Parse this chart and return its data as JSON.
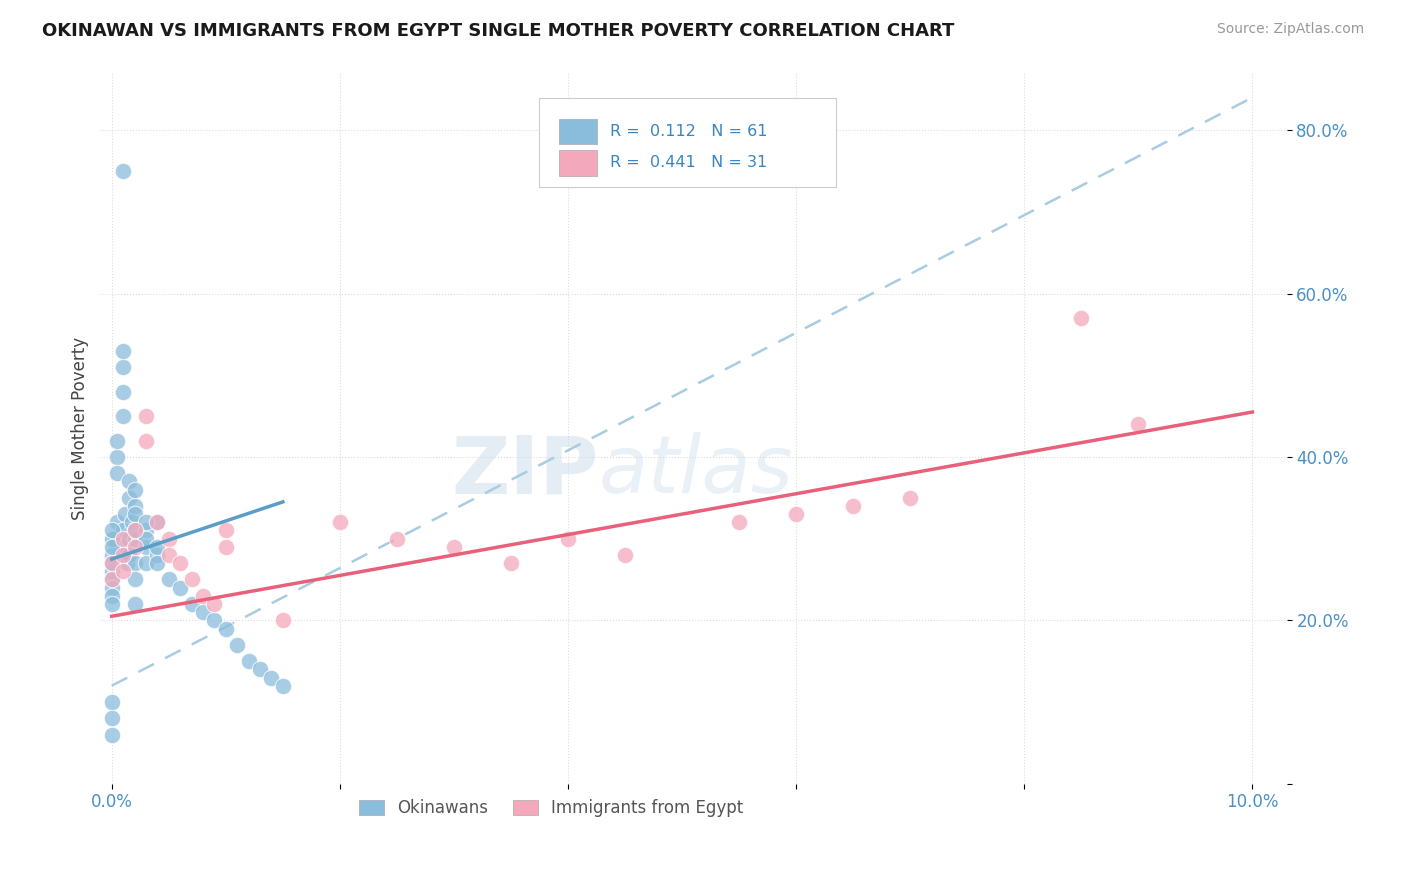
{
  "title": "OKINAWAN VS IMMIGRANTS FROM EGYPT SINGLE MOTHER POVERTY CORRELATION CHART",
  "source": "Source: ZipAtlas.com",
  "ylabel": "Single Mother Poverty",
  "xlim": [
    -0.001,
    0.103
  ],
  "ylim": [
    0.0,
    0.87
  ],
  "ytick_vals": [
    0.0,
    0.2,
    0.4,
    0.6,
    0.8
  ],
  "ytick_labels": [
    "",
    "20.0%",
    "40.0%",
    "60.0%",
    "80.0%"
  ],
  "xtick_vals": [
    0.0,
    0.02,
    0.04,
    0.06,
    0.08,
    0.1
  ],
  "xtick_labels": [
    "0.0%",
    "",
    "",
    "",
    "",
    "10.0%"
  ],
  "blue_R": 0.112,
  "blue_N": 61,
  "pink_R": 0.441,
  "pink_N": 31,
  "blue_color": "#8abcdb",
  "pink_color": "#f4a8bc",
  "blue_line_color": "#5a9ec8",
  "pink_line_color": "#e8607a",
  "dashed_line_color": "#a8cce0",
  "watermark_zip": "ZIP",
  "watermark_atlas": "atlas",
  "legend_blue_label": "Okinawans",
  "legend_pink_label": "Immigrants from Egypt",
  "blue_scatter_x": [
    0.0003,
    0.0005,
    0.0008,
    0.001,
    0.001,
    0.0012,
    0.0013,
    0.0015,
    0.0015,
    0.0018,
    0.002,
    0.002,
    0.002,
    0.002,
    0.003,
    0.003,
    0.003,
    0.004,
    0.004,
    0.0,
    0.0,
    0.0,
    0.0,
    0.0,
    0.0,
    0.0,
    0.0,
    0.0,
    0.0,
    0.001,
    0.001,
    0.001,
    0.001,
    0.0005,
    0.0005,
    0.0005,
    0.0015,
    0.0015,
    0.002,
    0.002,
    0.002,
    0.003,
    0.003,
    0.004,
    0.004,
    0.005,
    0.006,
    0.007,
    0.008,
    0.009,
    0.01,
    0.011,
    0.012,
    0.013,
    0.014,
    0.015,
    0.0,
    0.0,
    0.0,
    0.001,
    0.002
  ],
  "blue_scatter_y": [
    0.3,
    0.32,
    0.28,
    0.31,
    0.29,
    0.33,
    0.27,
    0.3,
    0.28,
    0.32,
    0.3,
    0.27,
    0.25,
    0.31,
    0.29,
    0.27,
    0.31,
    0.32,
    0.28,
    0.28,
    0.26,
    0.3,
    0.25,
    0.27,
    0.29,
    0.31,
    0.24,
    0.23,
    0.22,
    0.51,
    0.48,
    0.45,
    0.53,
    0.4,
    0.42,
    0.38,
    0.35,
    0.37,
    0.34,
    0.36,
    0.33,
    0.32,
    0.3,
    0.29,
    0.27,
    0.25,
    0.24,
    0.22,
    0.21,
    0.2,
    0.19,
    0.17,
    0.15,
    0.14,
    0.13,
    0.12,
    0.1,
    0.08,
    0.06,
    0.75,
    0.22
  ],
  "pink_scatter_x": [
    0.0,
    0.0,
    0.001,
    0.001,
    0.001,
    0.002,
    0.002,
    0.003,
    0.003,
    0.004,
    0.005,
    0.005,
    0.006,
    0.007,
    0.008,
    0.009,
    0.01,
    0.01,
    0.015,
    0.02,
    0.025,
    0.03,
    0.035,
    0.04,
    0.045,
    0.055,
    0.06,
    0.065,
    0.07,
    0.085,
    0.09
  ],
  "pink_scatter_y": [
    0.27,
    0.25,
    0.3,
    0.28,
    0.26,
    0.31,
    0.29,
    0.45,
    0.42,
    0.32,
    0.3,
    0.28,
    0.27,
    0.25,
    0.23,
    0.22,
    0.31,
    0.29,
    0.2,
    0.32,
    0.3,
    0.29,
    0.27,
    0.3,
    0.28,
    0.32,
    0.33,
    0.34,
    0.35,
    0.57,
    0.44
  ],
  "blue_line_x0": 0.0,
  "blue_line_x1": 0.015,
  "blue_line_y0": 0.275,
  "blue_line_y1": 0.345,
  "pink_line_x0": 0.0,
  "pink_line_x1": 0.1,
  "pink_line_y0": 0.205,
  "pink_line_y1": 0.455,
  "dash_line_x0": 0.0,
  "dash_line_x1": 0.1,
  "dash_line_y0": 0.12,
  "dash_line_y1": 0.84,
  "bg_color": "#ffffff",
  "grid_color": "#d8d8d8",
  "tick_color": "#4a90c8"
}
